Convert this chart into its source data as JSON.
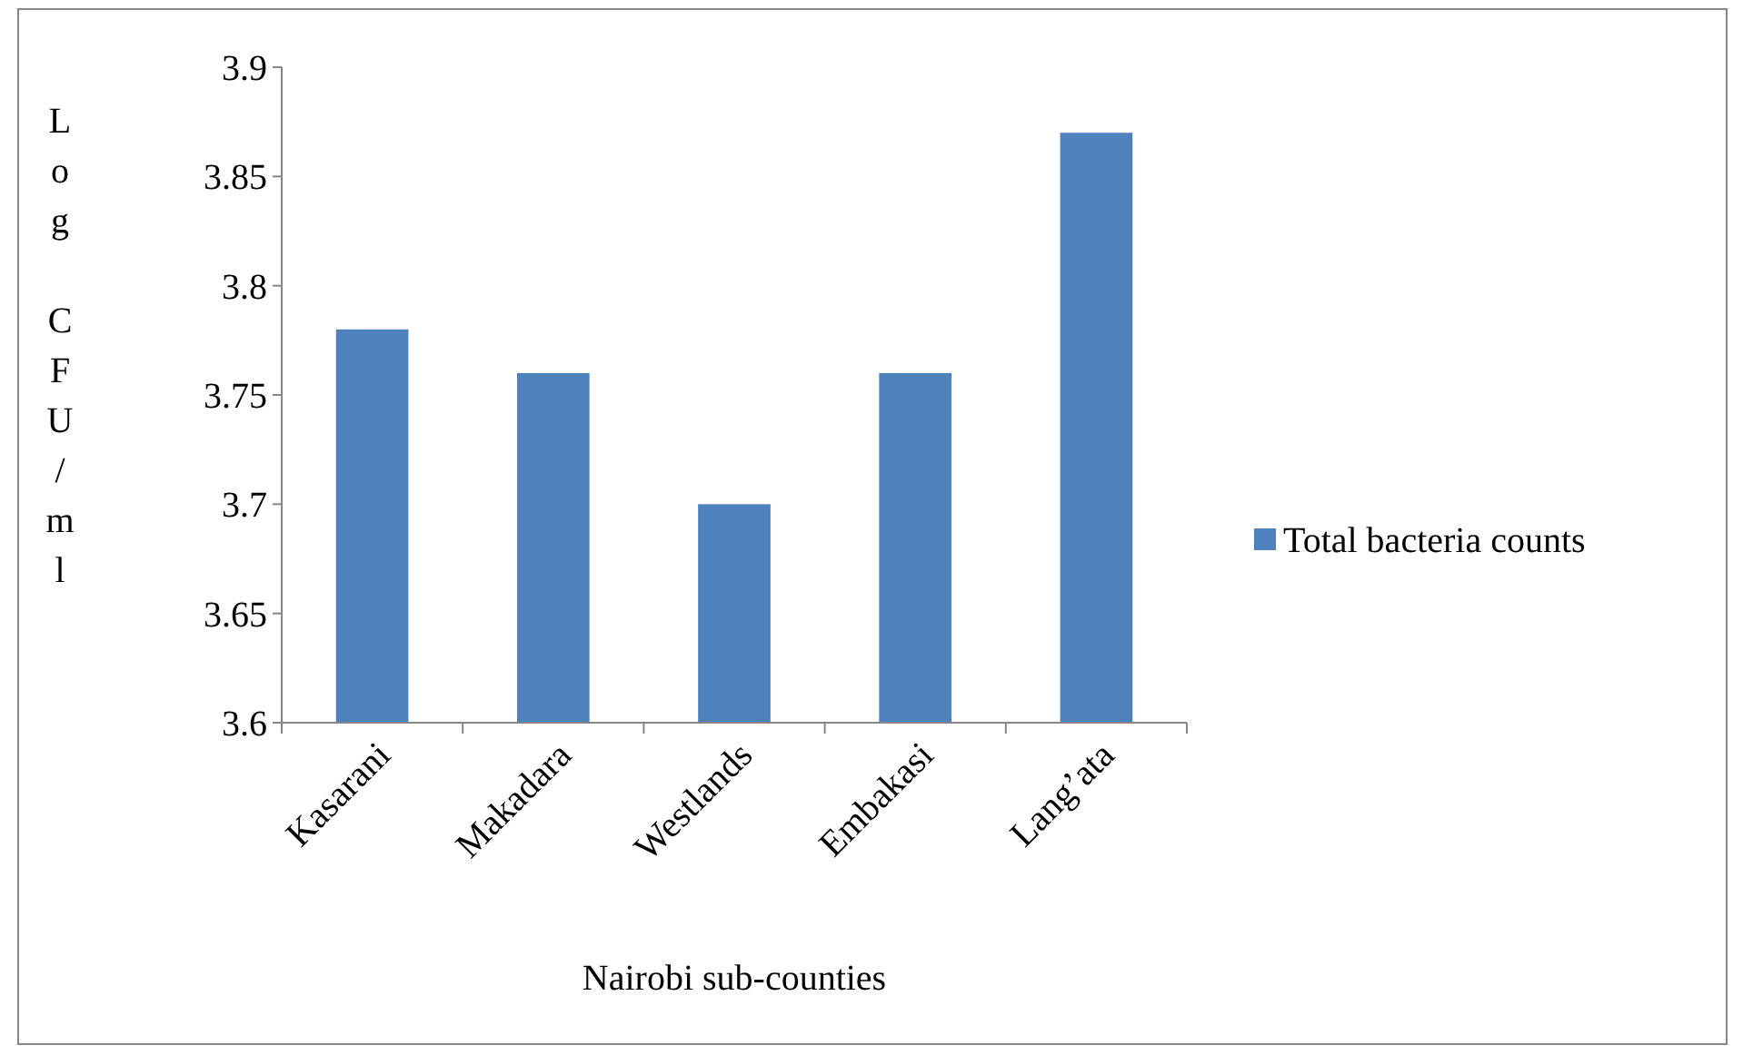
{
  "chart_data": {
    "type": "bar",
    "xlabel": "Nairobi sub-counties",
    "ylabel": "Log CFU/ml",
    "categories": [
      "Kasarani",
      "Makadara",
      "Westlands",
      "Embakasi",
      "Lang’ata"
    ],
    "series": [
      {
        "name": "Total bacteria counts",
        "color": "#4f81bd",
        "values": [
          3.78,
          3.76,
          3.7,
          3.76,
          3.87
        ]
      }
    ],
    "ylim": [
      3.6,
      3.9
    ],
    "yticks": [
      3.6,
      3.65,
      3.7,
      3.75,
      3.8,
      3.85,
      3.9
    ],
    "grid": false,
    "legend": "right"
  }
}
